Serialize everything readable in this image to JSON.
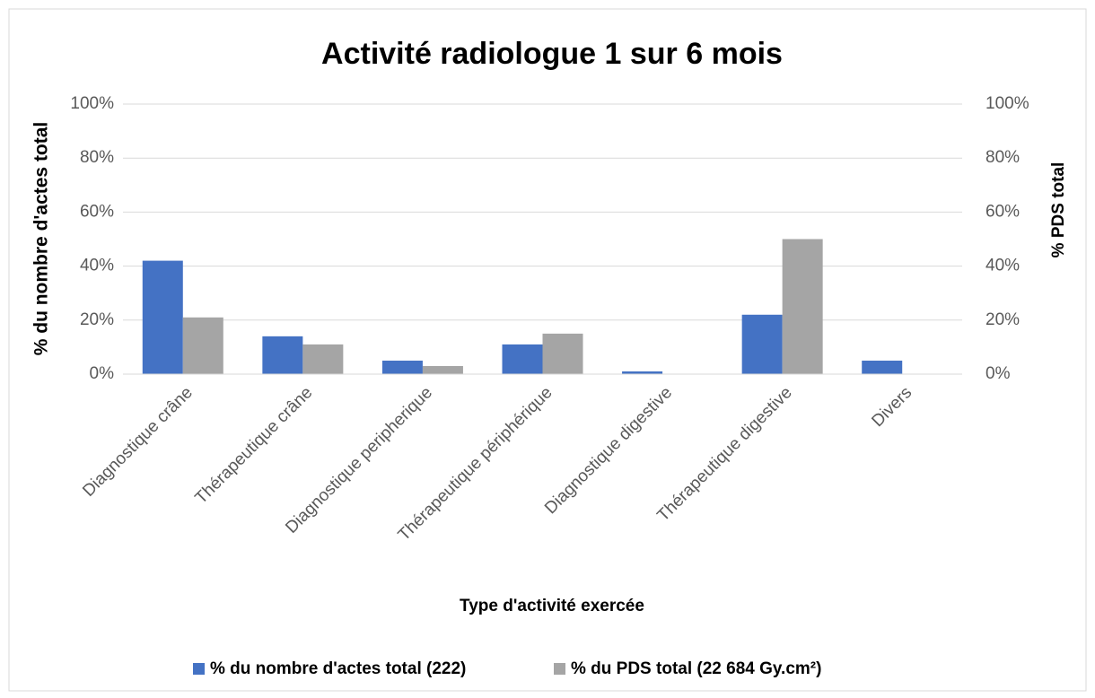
{
  "chart_data": {
    "type": "bar",
    "title": "Activité radiologue 1 sur 6 mois",
    "xlabel": "Type d'activité exercée",
    "ylabel": "% du nombre d'actes total",
    "y2label": "% PDS total",
    "categories": [
      "Diagnostique crâne",
      "Thérapeutique crâne",
      "Diagnostique peripherique",
      "Thérapeutique périphérique",
      "Diagnostique digestive",
      "Thérapeutique digestive",
      "Divers"
    ],
    "series": [
      {
        "name": "% du nombre d'actes total (222)",
        "color": "#4472c4",
        "values": [
          42,
          14,
          5,
          11,
          1,
          22,
          5
        ]
      },
      {
        "name": "% du PDS total (22 684 Gy.cm²)",
        "color": "#a5a5a5",
        "axis": "y2",
        "values": [
          21,
          11,
          3,
          15,
          0,
          50,
          0
        ]
      }
    ],
    "ylim": [
      0,
      100
    ],
    "yticks": [
      {
        "value": 0,
        "label": "0%"
      },
      {
        "value": 20,
        "label": "20%"
      },
      {
        "value": 40,
        "label": "40%"
      },
      {
        "value": 60,
        "label": "60%"
      },
      {
        "value": 80,
        "label": "80%"
      },
      {
        "value": 100,
        "label": "100%"
      }
    ],
    "y2lim": [
      0,
      100
    ],
    "y2ticks": [
      {
        "value": 0,
        "label": "0%"
      },
      {
        "value": 20,
        "label": "20%"
      },
      {
        "value": 40,
        "label": "40%"
      },
      {
        "value": 60,
        "label": "60%"
      },
      {
        "value": 80,
        "label": "80%"
      },
      {
        "value": 100,
        "label": "100%"
      }
    ],
    "grid": true,
    "legend": "bottom"
  }
}
